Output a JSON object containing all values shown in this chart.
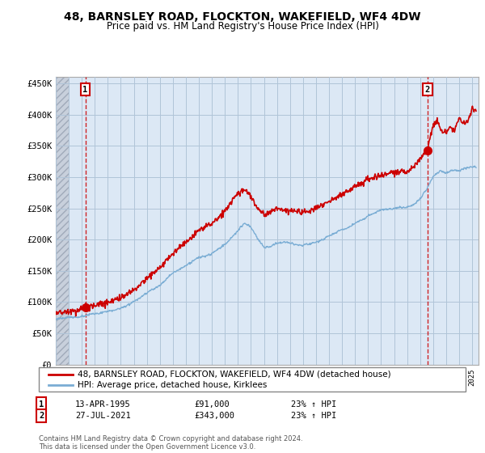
{
  "title": "48, BARNSLEY ROAD, FLOCKTON, WAKEFIELD, WF4 4DW",
  "subtitle": "Price paid vs. HM Land Registry's House Price Index (HPI)",
  "ylim": [
    0,
    460000
  ],
  "yticks": [
    0,
    50000,
    100000,
    150000,
    200000,
    250000,
    300000,
    350000,
    400000,
    450000
  ],
  "ytick_labels": [
    "£0",
    "£50K",
    "£100K",
    "£150K",
    "£200K",
    "£250K",
    "£300K",
    "£350K",
    "£400K",
    "£450K"
  ],
  "legend_entry1": "48, BARNSLEY ROAD, FLOCKTON, WAKEFIELD, WF4 4DW (detached house)",
  "legend_entry2": "HPI: Average price, detached house, Kirklees",
  "transaction1_date": "13-APR-1995",
  "transaction1_price": "£91,000",
  "transaction1_hpi": "23% ↑ HPI",
  "transaction2_date": "27-JUL-2021",
  "transaction2_price": "£343,000",
  "transaction2_hpi": "23% ↑ HPI",
  "footer": "Contains HM Land Registry data © Crown copyright and database right 2024.\nThis data is licensed under the Open Government Licence v3.0.",
  "line1_color": "#cc0000",
  "line2_color": "#7aadd4",
  "transaction1_x": 1995.27,
  "transaction1_y": 91000,
  "transaction2_x": 2021.57,
  "transaction2_y": 343000,
  "xlim_left": 1993.0,
  "xlim_right": 2025.5,
  "hatch_color": "#c8c8d8",
  "plot_bg": "#dce8f5",
  "grid_color": "#b0c4d8",
  "background_color": "#ffffff"
}
